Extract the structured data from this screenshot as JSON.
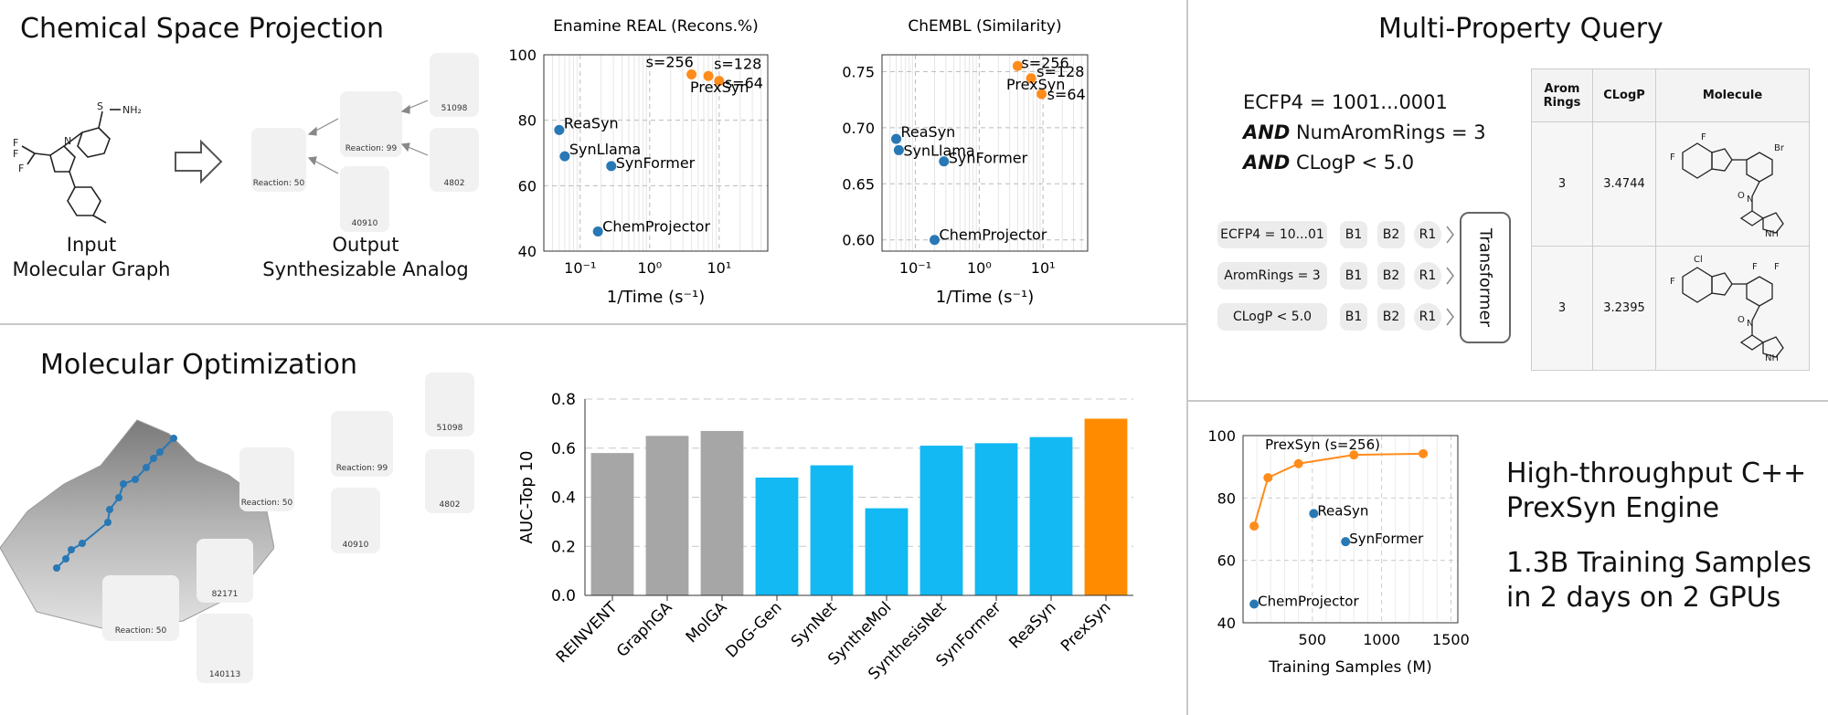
{
  "panels": {
    "chem_space": {
      "title": "Chemical Space Projection",
      "input_caption_1": "Input",
      "input_caption_2": "Molecular Graph",
      "output_caption_1": "Output",
      "output_caption_2": "Synthesizable Analog",
      "reaction_main": "Reaction: 50",
      "reaction_sub": "Reaction: 99",
      "bb_ids": [
        "51098",
        "4802",
        "40910"
      ]
    },
    "mol_opt": {
      "title": "Molecular Optimization",
      "reaction_main": "Reaction: 50",
      "reaction_sub": "Reaction: 99",
      "reaction_low": "Reaction: 50",
      "bb_ids": [
        "51098",
        "4802",
        "40910",
        "82171",
        "140113"
      ]
    },
    "multi_prop": {
      "title": "Multi-Property Query",
      "query_lines": [
        {
          "prefix": "",
          "text": "ECFP4 = 1001...0001"
        },
        {
          "prefix": "AND",
          "text": " NumAromRings = 3"
        },
        {
          "prefix": "AND",
          "text": " CLogP < 5.0"
        }
      ],
      "tokens": [
        "ECFP4 = 10...01",
        "AromRings = 3",
        "CLogP < 5.0"
      ],
      "block_tokens": [
        "B1",
        "B2",
        "R1"
      ],
      "transformer_label": "Transformer",
      "table": {
        "headers": [
          "Arom Rings",
          "CLogP",
          "Molecule"
        ],
        "rows": [
          [
            "3",
            "3.4744"
          ],
          [
            "3",
            "3.2395"
          ]
        ]
      }
    },
    "engine": {
      "line1": "High-throughput C++",
      "line2": "PrexSyn Engine",
      "line3": "1.3B Training Samples",
      "line4": "in 2 days on 2 GPUs"
    }
  },
  "chart_data": [
    {
      "id": "enamine",
      "type": "scatter",
      "title": "Enamine REAL (Recons.%)",
      "xlabel": "1/Time (s⁻¹)",
      "ylabel": "",
      "xscale": "log",
      "xlim": [
        0.03,
        50
      ],
      "ylim": [
        40,
        100
      ],
      "yticks": [
        "40",
        "60",
        "80",
        "100"
      ],
      "xticks": [
        "10⁻¹",
        "10⁰",
        "10¹"
      ],
      "grid": true,
      "points": [
        {
          "label": "ReaSyn",
          "x": 0.05,
          "y": 77,
          "color": "#2878b5"
        },
        {
          "label": "SynLlama",
          "x": 0.06,
          "y": 69,
          "color": "#2878b5"
        },
        {
          "label": "SynFormer",
          "x": 0.28,
          "y": 66,
          "color": "#2878b5"
        },
        {
          "label": "ChemProjector",
          "x": 0.18,
          "y": 46,
          "color": "#2878b5"
        },
        {
          "label": "s=256",
          "x": 4,
          "y": 94,
          "color": "#ff8c1a"
        },
        {
          "label": "s=128",
          "x": 7,
          "y": 93.5,
          "color": "#ff8c1a"
        },
        {
          "label": "s=64",
          "x": 10,
          "y": 92,
          "color": "#ff8c1a"
        }
      ],
      "annotations": [
        "PrexSyn"
      ]
    },
    {
      "id": "chembl",
      "type": "scatter",
      "title": "ChEMBL (Similarity)",
      "xlabel": "1/Time (s⁻¹)",
      "ylabel": "",
      "xscale": "log",
      "xlim": [
        0.03,
        50
      ],
      "ylim": [
        0.59,
        0.765
      ],
      "yticks": [
        "0.60",
        "0.65",
        "0.70",
        "0.75"
      ],
      "xticks": [
        "10⁻¹",
        "10⁰",
        "10¹"
      ],
      "grid": true,
      "points": [
        {
          "label": "ReaSyn",
          "x": 0.05,
          "y": 0.69,
          "color": "#2878b5"
        },
        {
          "label": "SynLlama",
          "x": 0.055,
          "y": 0.68,
          "color": "#2878b5"
        },
        {
          "label": "SynFormer",
          "x": 0.28,
          "y": 0.67,
          "color": "#2878b5"
        },
        {
          "label": "ChemProjector",
          "x": 0.2,
          "y": 0.6,
          "color": "#2878b5"
        },
        {
          "label": "s=256",
          "x": 4,
          "y": 0.755,
          "color": "#ff8c1a"
        },
        {
          "label": "s=128",
          "x": 6.5,
          "y": 0.744,
          "color": "#ff8c1a"
        },
        {
          "label": "s=64",
          "x": 9.5,
          "y": 0.73,
          "color": "#ff8c1a"
        }
      ],
      "annotations": [
        "PrexSyn"
      ]
    },
    {
      "id": "auc",
      "type": "bar",
      "title": "",
      "xlabel": "",
      "ylabel": "AUC-Top 10",
      "ylim": [
        0,
        0.8
      ],
      "yticks": [
        "0.0",
        "0.2",
        "0.4",
        "0.6",
        "0.8"
      ],
      "grid": true,
      "categories": [
        "REINVENT",
        "GraphGA",
        "MolGA",
        "DoG-Gen",
        "SynNet",
        "SyntheMol",
        "SynthesisNet",
        "SynFormer",
        "ReaSyn",
        "PrexSyn"
      ],
      "values": [
        0.58,
        0.65,
        0.67,
        0.48,
        0.53,
        0.355,
        0.61,
        0.62,
        0.645,
        0.72
      ],
      "colors": [
        "#a6a6a6",
        "#a6a6a6",
        "#a6a6a6",
        "#12b9f2",
        "#12b9f2",
        "#12b9f2",
        "#12b9f2",
        "#12b9f2",
        "#12b9f2",
        "#ff8c00"
      ]
    },
    {
      "id": "scaling",
      "type": "line",
      "title": "",
      "xlabel": "Training Samples (M)",
      "ylabel": "",
      "xlim": [
        0,
        1550
      ],
      "ylim": [
        40,
        100
      ],
      "xticks": [
        "500",
        "1000",
        "1500"
      ],
      "yticks": [
        "40",
        "60",
        "80",
        "100"
      ],
      "grid": true,
      "series": [
        {
          "name": "PrexSyn (s=256)",
          "color": "#ff8c1a",
          "x": [
            80,
            180,
            400,
            800,
            1300
          ],
          "y": [
            71,
            86.5,
            91,
            93.8,
            94.2
          ]
        }
      ],
      "points": [
        {
          "label": "ReaSyn",
          "x": 510,
          "y": 75,
          "color": "#2878b5"
        },
        {
          "label": "SynFormer",
          "x": 740,
          "y": 66,
          "color": "#2878b5"
        },
        {
          "label": "ChemProjector",
          "x": 80,
          "y": 46,
          "color": "#2878b5"
        }
      ]
    }
  ]
}
